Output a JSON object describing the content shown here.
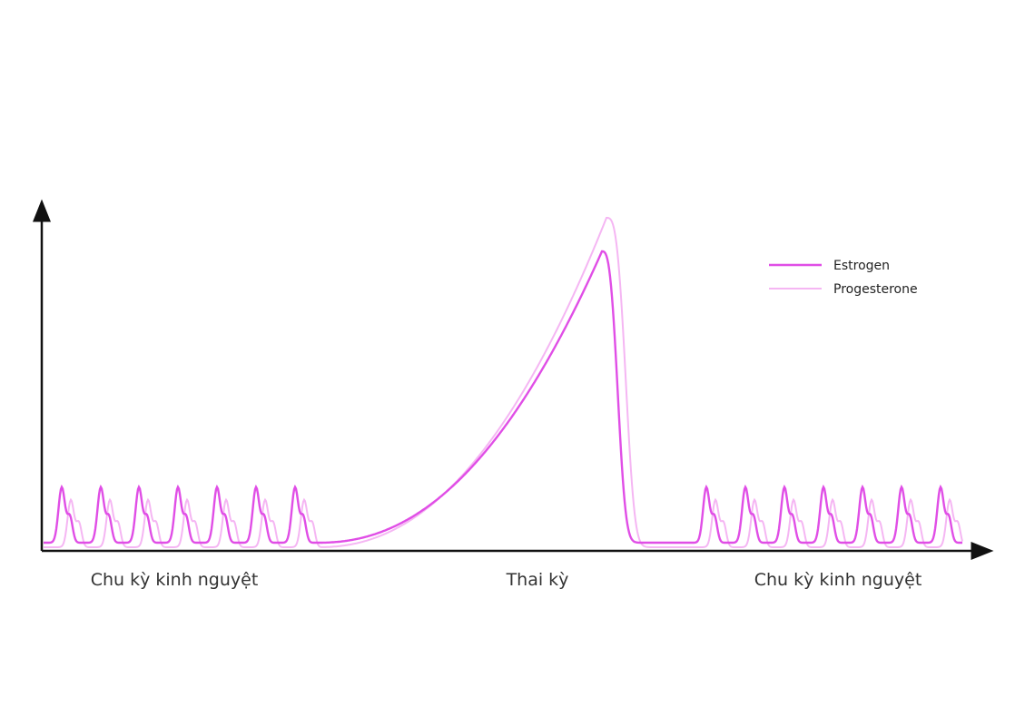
{
  "legend": {
    "items": [
      "Estrogen",
      "Progesterone"
    ]
  },
  "phases": [
    "Chu kỳ kinh nguyệt",
    "Thai kỳ",
    "Chu kỳ kinh nguyệt"
  ]
}
